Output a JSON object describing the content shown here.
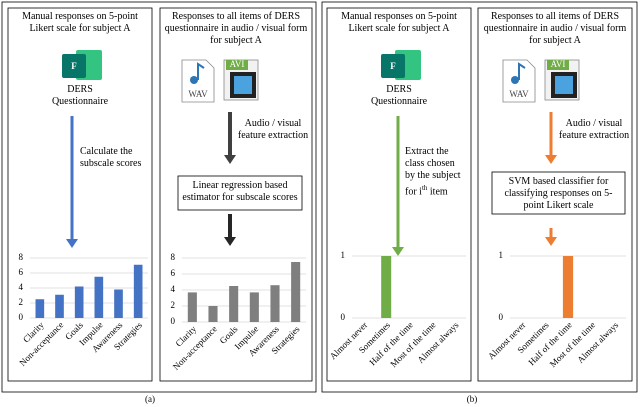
{
  "panels": [
    {
      "label": "(a)",
      "boxes": [
        {
          "header": "Manual responses on 5-point Likert scale for subject A",
          "icon_letter": "F",
          "source": "DERS Questionnaire",
          "step": "Calculate the subscale scores",
          "chart": {
            "type": "bar",
            "categories": [
              "Clarity",
              "Non-acceptance",
              "Goals",
              "Impulse",
              "Awareness",
              "Strategies"
            ],
            "values": [
              2.5,
              3.1,
              4.2,
              5.5,
              3.8,
              7.1
            ],
            "color": "#4472c4",
            "ylim": [
              0,
              8
            ],
            "yticks": [
              0,
              2,
              4,
              6,
              8
            ],
            "grid": true
          }
        },
        {
          "header": "Responses to all items of DERS questionnaire in audio / visual form for subject A",
          "icon_labels": [
            "WAV",
            "AVI"
          ],
          "step": "Audio / visual feature extraction",
          "model": "Linear regression based estimator for subscale scores",
          "chart": {
            "type": "bar",
            "categories": [
              "Clarity",
              "Non-acceptance",
              "Goals",
              "Impulse",
              "Awareness",
              "Strategies"
            ],
            "values": [
              3.7,
              2.0,
              4.5,
              3.7,
              4.6,
              7.5
            ],
            "color": "#7f7f7f",
            "ylim": [
              0,
              8
            ],
            "yticks": [
              0,
              2,
              4,
              6,
              8
            ],
            "grid": true
          }
        }
      ]
    },
    {
      "label": "(b)",
      "boxes": [
        {
          "header": "Manual responses on 5-point Likert scale for subject A",
          "icon_letter": "F",
          "source": "DERS Questionnaire",
          "step": "Extract the class chosen by the subject for i",
          "step_sup": "th",
          "step_end": " item",
          "chart": {
            "type": "bar",
            "categories": [
              "Almost never",
              "Sometimes",
              "Half of the time",
              "Most of the time",
              "Almost always"
            ],
            "values": [
              0,
              1,
              0,
              0,
              0
            ],
            "color": "#70ad47",
            "ylim": [
              0,
              1
            ],
            "yticks": [
              0,
              1
            ],
            "grid": true
          }
        },
        {
          "header": "Responses to all items of DERS questionnaire in audio / visual form for subject A",
          "icon_labels": [
            "WAV",
            "AVI"
          ],
          "step": "Audio / visual feature extraction",
          "model": "SVM based classifier for classifying responses on 5-point Likert scale",
          "chart": {
            "type": "bar",
            "categories": [
              "Almost never",
              "Sometimes",
              "Half of the time",
              "Most of the time",
              "Almost always"
            ],
            "values": [
              0,
              0,
              1,
              0,
              0
            ],
            "color": "#ed7d31",
            "ylim": [
              0,
              1
            ],
            "yticks": [
              0,
              1
            ],
            "grid": true
          }
        }
      ]
    }
  ]
}
